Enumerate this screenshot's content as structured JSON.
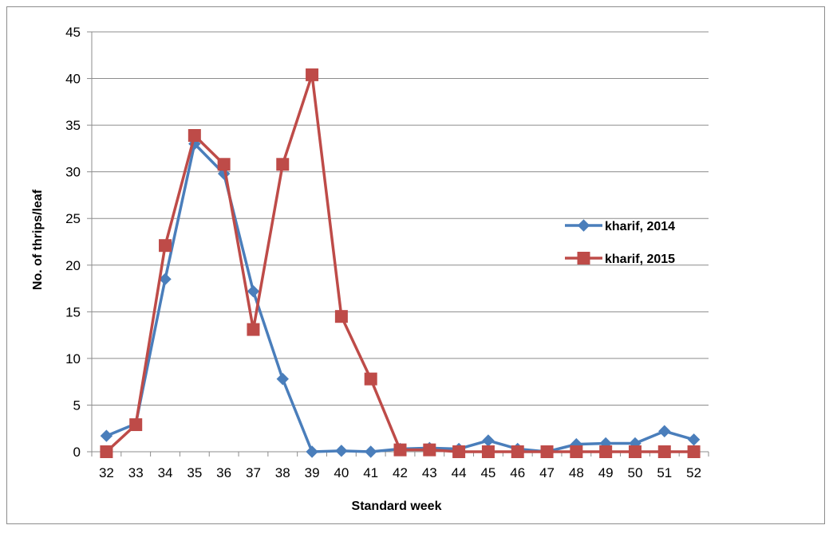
{
  "chart_data": {
    "type": "line",
    "title": "",
    "xlabel": "Standard week",
    "ylabel": "No. of thrips/leaf",
    "categories": [
      "32",
      "33",
      "34",
      "35",
      "36",
      "37",
      "38",
      "39",
      "40",
      "41",
      "42",
      "43",
      "44",
      "45",
      "46",
      "47",
      "48",
      "49",
      "50",
      "51",
      "52"
    ],
    "ylim": [
      0,
      45
    ],
    "yticks": [
      0,
      5,
      10,
      15,
      20,
      25,
      30,
      35,
      40,
      45
    ],
    "grid": true,
    "legend_position": "right",
    "series": [
      {
        "name": "kharif, 2014",
        "color": "#4a7ebb",
        "marker": "diamond",
        "values": [
          1.7,
          3.0,
          18.5,
          33.0,
          29.8,
          17.2,
          7.8,
          0.0,
          0.1,
          0.0,
          0.3,
          0.4,
          0.3,
          1.2,
          0.3,
          0.0,
          0.8,
          0.9,
          0.9,
          2.2,
          1.3
        ]
      },
      {
        "name": "kharif, 2015",
        "color": "#be4b48",
        "marker": "square",
        "values": [
          0.0,
          2.9,
          22.1,
          33.9,
          30.8,
          13.1,
          30.8,
          40.4,
          14.5,
          7.8,
          0.2,
          0.2,
          0.0,
          0.0,
          0.0,
          0.0,
          0.0,
          0.0,
          0.0,
          0.0,
          0.0
        ]
      }
    ]
  }
}
